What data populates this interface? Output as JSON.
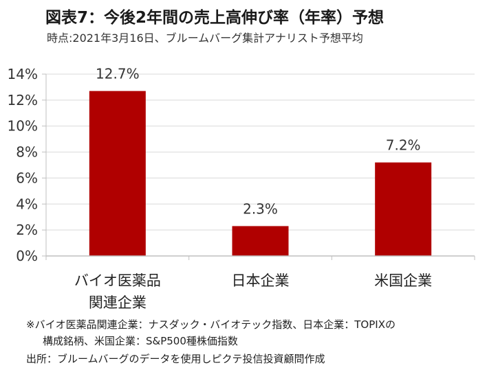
{
  "title": "図表7：今後2年間の売上高伸び率（年率）予想",
  "subtitle": "時点:2021年3月16日、ブルームバーグ集計アナリスト予想平均",
  "notes": {
    "line1": "※バイオ医薬品関連企業：ナスダック・バイオテック指数、日本企業：TOPIXの",
    "line2": "構成銘柄、米国企業：S&P500種株価指数",
    "line3": "出所：ブルームバーグのデータを使用しピクテ投信投資顧問作成"
  },
  "colors": {
    "bar": "#b00000",
    "gridline": "#d9d9d9",
    "axis": "#bfbfbf"
  },
  "chart_data": {
    "type": "bar",
    "categories": [
      [
        "バイオ医薬品",
        "関連企業"
      ],
      [
        "日本企業"
      ],
      [
        "米国企業"
      ]
    ],
    "values": [
      12.7,
      2.3,
      7.2
    ],
    "data_labels": [
      "12.7%",
      "2.3%",
      "7.2%"
    ],
    "ylim": [
      0,
      14
    ],
    "yticks": [
      0,
      2,
      4,
      6,
      8,
      10,
      12,
      14
    ],
    "ytick_format": "%",
    "grid": true,
    "legend": "none"
  }
}
